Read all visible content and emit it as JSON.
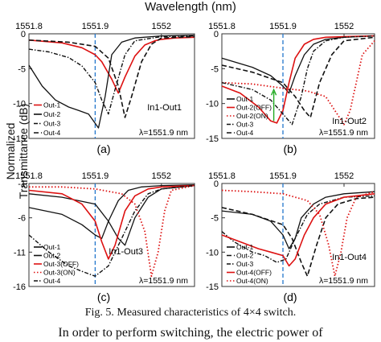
{
  "figure": {
    "x_title": "Wavelength (nm)",
    "y_title": "Normalized Transmittance (dB)",
    "caption": "Fig. 5. Measured characteristics of 4×4 switch.",
    "body_text": "In order to perform switching, the electric power of"
  },
  "colors": {
    "black": "#111111",
    "red": "#dd1111",
    "marker": "#2277cc",
    "arrow": "#22aa22"
  },
  "chart_data": [
    {
      "type": "line",
      "panel": "(a)",
      "name": "In1-Out1",
      "wavelength_label": "λ=1551.9 nm",
      "xlim": [
        1551.8,
        1552.05
      ],
      "ylim": [
        -15,
        0
      ],
      "xticks": [
        "1551.8",
        "1551.9",
        "1552"
      ],
      "yticks": [
        "0",
        "-5",
        "-10",
        "-15"
      ],
      "legend": [
        "Out-1",
        "Out-2",
        "Out-3",
        "Out-4"
      ],
      "series": [
        {
          "name": "Out-1",
          "style": "solid-red",
          "x": [
            1551.8,
            1551.85,
            1551.88,
            1551.9,
            1551.91,
            1551.925,
            1551.935,
            1551.945,
            1551.96,
            1551.975,
            1551.99,
            1552.0,
            1552.02,
            1552.05
          ],
          "y": [
            -0.9,
            -1.3,
            -2.0,
            -3.0,
            -4.0,
            -6.5,
            -8.5,
            -6.2,
            -3.2,
            -1.6,
            -1.0,
            -0.8,
            -0.6,
            -0.5
          ]
        },
        {
          "name": "Out-2",
          "style": "solid-black",
          "x": [
            1551.8,
            1551.82,
            1551.84,
            1551.86,
            1551.875,
            1551.89,
            1551.905,
            1551.915,
            1551.925,
            1551.94,
            1551.96,
            1552.0,
            1552.05
          ],
          "y": [
            -4.5,
            -7.5,
            -9.5,
            -10.5,
            -11.0,
            -11.5,
            -13.5,
            -9.0,
            -3.0,
            -1.2,
            -0.6,
            -0.3,
            -0.2
          ]
        },
        {
          "name": "Out-3",
          "style": "dashdot-black",
          "x": [
            1551.8,
            1551.83,
            1551.86,
            1551.88,
            1551.9,
            1551.91,
            1551.92,
            1551.93,
            1551.945,
            1551.96,
            1552.0,
            1552.05
          ],
          "y": [
            -2.2,
            -2.6,
            -3.4,
            -4.6,
            -7.0,
            -9.5,
            -11.5,
            -8.0,
            -3.0,
            -1.0,
            -0.4,
            -0.3
          ]
        },
        {
          "name": "Out-4",
          "style": "dashed-black",
          "x": [
            1551.8,
            1551.86,
            1551.9,
            1551.92,
            1551.935,
            1551.945,
            1551.955,
            1551.97,
            1551.985,
            1552.0,
            1552.05
          ],
          "y": [
            -0.9,
            -1.2,
            -1.8,
            -3.5,
            -7.5,
            -12.0,
            -9.0,
            -4.0,
            -1.5,
            -0.6,
            -0.4
          ]
        }
      ]
    },
    {
      "type": "line",
      "panel": "(b)",
      "name": "In1-Out2",
      "wavelength_label": "λ=1551.9 nm",
      "xlim": [
        1551.8,
        1552.05
      ],
      "ylim": [
        -15,
        0
      ],
      "xticks": [
        "1551.8",
        "1551.9",
        "1552"
      ],
      "yticks": [
        "0",
        "-5",
        "-10",
        "-15"
      ],
      "legend": [
        "Out-1",
        "Out-2(OFF)",
        "Out-2(ON)",
        "Out-3",
        "Out-4"
      ],
      "series": [
        {
          "name": "Out-1",
          "style": "solid-black",
          "x": [
            1551.8,
            1551.85,
            1551.88,
            1551.9,
            1551.91,
            1551.92,
            1551.935,
            1551.95,
            1551.97,
            1552.0,
            1552.05
          ],
          "y": [
            -3.5,
            -4.8,
            -6.0,
            -7.5,
            -8.5,
            -6.0,
            -3.0,
            -1.5,
            -0.8,
            -0.5,
            -0.3
          ]
        },
        {
          "name": "Out-2(OFF)",
          "style": "solid-red",
          "x": [
            1551.8,
            1551.83,
            1551.86,
            1551.88,
            1551.89,
            1551.9,
            1551.91,
            1551.92,
            1551.935,
            1551.95,
            1551.97,
            1552.0,
            1552.05
          ],
          "y": [
            -7.5,
            -8.5,
            -10.5,
            -12.5,
            -12.8,
            -11.0,
            -7.0,
            -3.5,
            -1.5,
            -0.8,
            -0.5,
            -0.4,
            -0.3
          ]
        },
        {
          "name": "Out-2(ON)",
          "style": "dotted-red",
          "x": [
            1551.8,
            1551.85,
            1551.9,
            1551.94,
            1551.97,
            1551.985,
            1552.0,
            1552.01,
            1552.02,
            1552.03,
            1552.05
          ],
          "y": [
            -7.0,
            -7.2,
            -7.8,
            -8.2,
            -9.0,
            -11.0,
            -13.0,
            -11.0,
            -7.0,
            -3.0,
            -1.0
          ]
        },
        {
          "name": "Out-3",
          "style": "dashdot-black",
          "x": [
            1551.8,
            1551.85,
            1551.88,
            1551.9,
            1551.915,
            1551.93,
            1551.94,
            1551.95,
            1551.97,
            1552.0,
            1552.05
          ],
          "y": [
            -7.0,
            -8.0,
            -9.5,
            -11.5,
            -13.0,
            -9.0,
            -5.0,
            -2.5,
            -1.0,
            -0.5,
            -0.3
          ]
        },
        {
          "name": "Out-4",
          "style": "dashed-black",
          "x": [
            1551.8,
            1551.85,
            1551.9,
            1551.92,
            1551.935,
            1551.945,
            1551.96,
            1551.98,
            1552.0,
            1552.05
          ],
          "y": [
            -4.5,
            -5.5,
            -7.0,
            -9.0,
            -11.0,
            -12.0,
            -7.0,
            -3.0,
            -1.0,
            -0.5
          ]
        }
      ]
    },
    {
      "type": "line",
      "panel": "(c)",
      "name": "In1-Out3",
      "wavelength_label": "λ=1551.9 nm",
      "xlim": [
        1551.8,
        1552.05
      ],
      "ylim": [
        -16,
        -1
      ],
      "xticks": [
        "1551.8",
        "1551.9",
        "1552"
      ],
      "yticks": [
        "-1",
        "-6",
        "-11",
        "-16"
      ],
      "legend": [
        "Out-1",
        "Out-2",
        "Out-3(OFF)",
        "Out-3(ON)",
        "Out-4"
      ],
      "series": [
        {
          "name": "Out-1",
          "style": "solid-black",
          "x": [
            1551.8,
            1551.85,
            1551.88,
            1551.9,
            1551.91,
            1551.92,
            1551.935,
            1551.95,
            1551.97,
            1552.0,
            1552.05
          ],
          "y": [
            -4.5,
            -5.5,
            -7.0,
            -8.5,
            -9.0,
            -6.5,
            -3.5,
            -2.0,
            -1.5,
            -1.3,
            -1.2
          ]
        },
        {
          "name": "Out-2",
          "style": "solid-black",
          "x": [
            1551.8,
            1551.85,
            1551.9,
            1551.92,
            1551.935,
            1551.945,
            1551.96,
            1551.98,
            1552.0,
            1552.05
          ],
          "y": [
            -2.5,
            -3.0,
            -4.0,
            -6.5,
            -9.0,
            -10.0,
            -6.0,
            -3.0,
            -1.8,
            -1.3
          ]
        },
        {
          "name": "Out-3(OFF)",
          "style": "solid-red",
          "x": [
            1551.8,
            1551.85,
            1551.88,
            1551.9,
            1551.91,
            1551.92,
            1551.93,
            1551.945,
            1551.96,
            1551.98,
            1552.0,
            1552.05
          ],
          "y": [
            -2.0,
            -2.5,
            -4.0,
            -6.5,
            -9.5,
            -12.0,
            -10.0,
            -5.0,
            -2.8,
            -1.8,
            -1.5,
            -1.3
          ]
        },
        {
          "name": "Out-3(ON)",
          "style": "dotted-red",
          "x": [
            1551.8,
            1551.85,
            1551.9,
            1551.94,
            1551.96,
            1551.975,
            1551.985,
            1551.995,
            1552.005,
            1552.015,
            1552.05
          ],
          "y": [
            -1.5,
            -1.5,
            -1.8,
            -2.5,
            -4.0,
            -8.0,
            -14.5,
            -11.0,
            -5.0,
            -2.0,
            -1.3
          ]
        },
        {
          "name": "Out-4",
          "style": "dashdot-black",
          "x": [
            1551.8,
            1551.83,
            1551.86,
            1551.88,
            1551.9,
            1551.92,
            1551.94,
            1551.96,
            1551.98,
            1552.0,
            1552.05
          ],
          "y": [
            -8.5,
            -11.0,
            -13.0,
            -13.8,
            -14.5,
            -13.0,
            -9.0,
            -5.0,
            -2.5,
            -1.8,
            -1.3
          ]
        }
      ]
    },
    {
      "type": "line",
      "panel": "(d)",
      "name": "In1-Out4",
      "wavelength_label": "λ=1551.9 nm",
      "xlim": [
        1551.8,
        1552.05
      ],
      "ylim": [
        -15,
        0
      ],
      "xticks": [
        "1551.8",
        "1551.9",
        "1552"
      ],
      "yticks": [
        "0",
        "-5",
        "-10",
        "-15"
      ],
      "legend": [
        "Out-1",
        "Out-2",
        "Out-3",
        "Out-4(OFF)",
        "Out-4(ON)"
      ],
      "series": [
        {
          "name": "Out-1",
          "style": "solid-black",
          "x": [
            1551.8,
            1551.85,
            1551.88,
            1551.9,
            1551.91,
            1551.92,
            1551.93,
            1551.95,
            1551.97,
            1552.0,
            1552.05
          ],
          "y": [
            -4.0,
            -4.5,
            -5.5,
            -7.5,
            -9.5,
            -8.0,
            -5.0,
            -3.0,
            -2.0,
            -1.5,
            -1.2
          ]
        },
        {
          "name": "Out-2",
          "style": "dashed-black",
          "x": [
            1551.8,
            1551.85,
            1551.9,
            1551.915,
            1551.93,
            1551.94,
            1551.955,
            1551.97,
            1551.99,
            1552.02,
            1552.05
          ],
          "y": [
            -3.5,
            -4.5,
            -6.0,
            -8.0,
            -11.5,
            -13.5,
            -9.0,
            -5.0,
            -3.0,
            -2.2,
            -2.0
          ]
        },
        {
          "name": "Out-3",
          "style": "dashdot-black",
          "x": [
            1551.8,
            1551.82,
            1551.85,
            1551.87,
            1551.89,
            1551.905,
            1551.92,
            1551.94,
            1551.96,
            1552.0,
            1552.05
          ],
          "y": [
            -7.0,
            -8.5,
            -10.0,
            -10.5,
            -11.5,
            -11.0,
            -8.0,
            -4.5,
            -3.0,
            -2.0,
            -1.8
          ]
        },
        {
          "name": "Out-4(OFF)",
          "style": "solid-red",
          "x": [
            1551.8,
            1551.83,
            1551.86,
            1551.88,
            1551.9,
            1551.91,
            1551.92,
            1551.935,
            1551.95,
            1551.97,
            1552.0,
            1552.05
          ],
          "y": [
            -7.5,
            -8.5,
            -9.5,
            -10.0,
            -10.5,
            -12.0,
            -11.0,
            -7.5,
            -5.0,
            -3.0,
            -2.0,
            -1.5
          ]
        },
        {
          "name": "Out-4(ON)",
          "style": "dotted-red",
          "x": [
            1551.8,
            1551.85,
            1551.9,
            1551.94,
            1551.96,
            1551.975,
            1551.985,
            1551.995,
            1552.005,
            1552.02,
            1552.05
          ],
          "y": [
            -1.0,
            -1.2,
            -1.5,
            -2.5,
            -4.5,
            -9.0,
            -13.5,
            -10.0,
            -5.0,
            -2.0,
            -1.2
          ]
        }
      ]
    }
  ]
}
